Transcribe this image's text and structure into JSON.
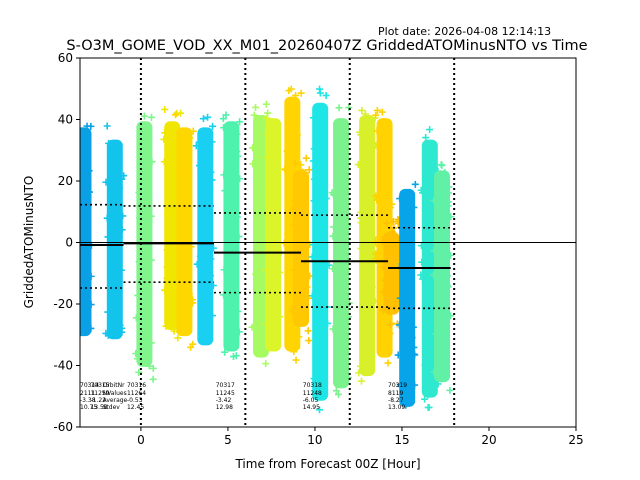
{
  "chart_data": {
    "type": "scatter",
    "plot_date": "Plot date: 2026-04-08 12:14:13",
    "title": "S-O3M_GOME_VOD_XX_M01_20260407Z GriddedATOMinusNTO vs Time",
    "xlabel": "Time from Forecast 00Z [Hour]",
    "ylabel": "GriddedATOMinusNTO",
    "xlim": [
      -3.5,
      25
    ],
    "ylim": [
      -60,
      60
    ],
    "xticks": [
      0,
      5,
      10,
      15,
      20,
      25
    ],
    "yticks": [
      -60,
      -40,
      -20,
      0,
      20,
      40,
      60
    ],
    "forecast_lines_x": [
      0,
      6,
      12,
      18
    ],
    "zero_line_y": 0,
    "strips": [
      {
        "x": -3.3,
        "ymin": -35,
        "ymax": 42,
        "color": "#0aa0e6"
      },
      {
        "x": -1.5,
        "ymin": -36,
        "ymax": 38,
        "color": "#12c4ec"
      },
      {
        "x": 0.2,
        "ymin": -45,
        "ymax": 44,
        "color": "#7ff58c"
      },
      {
        "x": 1.8,
        "ymin": -33,
        "ymax": 44,
        "color": "#f0e600"
      },
      {
        "x": 2.5,
        "ymin": -35,
        "ymax": 42,
        "color": "#ffd700"
      },
      {
        "x": 3.7,
        "ymin": -38,
        "ymax": 42,
        "color": "#1ad0f2"
      },
      {
        "x": 5.2,
        "ymin": -40,
        "ymax": 44,
        "color": "#4ff2ad"
      },
      {
        "x": 6.9,
        "ymin": -42,
        "ymax": 46,
        "color": "#a6fa62"
      },
      {
        "x": 7.6,
        "ymin": -40,
        "ymax": 45,
        "color": "#dcf52a"
      },
      {
        "x": 8.7,
        "ymin": -40,
        "ymax": 52,
        "color": "#ffd400"
      },
      {
        "x": 9.2,
        "ymin": -32,
        "ymax": 28,
        "color": "#ffc800"
      },
      {
        "x": 10.3,
        "ymin": -56,
        "ymax": 50,
        "color": "#1ee6e6"
      },
      {
        "x": 11.5,
        "ymin": -52,
        "ymax": 45,
        "color": "#7cf28f"
      },
      {
        "x": 13,
        "ymin": -48,
        "ymax": 46,
        "color": "#d8f02a"
      },
      {
        "x": 14,
        "ymin": -42,
        "ymax": 45,
        "color": "#ffd200"
      },
      {
        "x": 14.4,
        "ymin": -28,
        "ymax": 8,
        "color": "#ffc000"
      },
      {
        "x": 15.3,
        "ymin": -58,
        "ymax": 22,
        "color": "#08a4ea"
      },
      {
        "x": 16.6,
        "ymin": -55,
        "ymax": 38,
        "color": "#2ee8cf"
      },
      {
        "x": 17.3,
        "ymin": -50,
        "ymax": 28,
        "color": "#60f0a6"
      }
    ],
    "segments": [
      {
        "x0": -3.5,
        "x1": -1,
        "mean": -0.8,
        "upper": 12.3,
        "lower": -14.8
      },
      {
        "x0": -1,
        "x1": 4.2,
        "mean": -0.3,
        "upper": 11.9,
        "lower": -12.9
      },
      {
        "x0": 4.2,
        "x1": 9.2,
        "mean": -3.3,
        "upper": 9.6,
        "lower": -16.3
      },
      {
        "x0": 9.2,
        "x1": 14.2,
        "mean": -6.1,
        "upper": 8.9,
        "lower": -21.0
      },
      {
        "x0": 14.2,
        "x1": 17.8,
        "mean": -8.3,
        "upper": 4.8,
        "lower": -21.4
      }
    ],
    "stats_labels": [
      "OrbitNr",
      "NValues",
      "Average",
      "Stdev"
    ],
    "stats": [
      {
        "orbit": "70314",
        "n": "2111",
        "avg": "-3.38",
        "std": "10.75"
      },
      {
        "orbit": "70315",
        "n": "11259",
        "avg": "-1.22",
        "std": "13.58"
      },
      {
        "orbit": "70316",
        "n": "11264",
        "avg": "-0.53",
        "std": "12.45"
      },
      {
        "orbit": "70317",
        "n": "11245",
        "avg": "-3.42",
        "std": "12.98"
      },
      {
        "orbit": "70318",
        "n": "11248",
        "avg": "-6.05",
        "std": "14.95"
      },
      {
        "orbit": "70319",
        "n": "8119",
        "avg": "-8.27",
        "std": "13.09"
      }
    ]
  }
}
